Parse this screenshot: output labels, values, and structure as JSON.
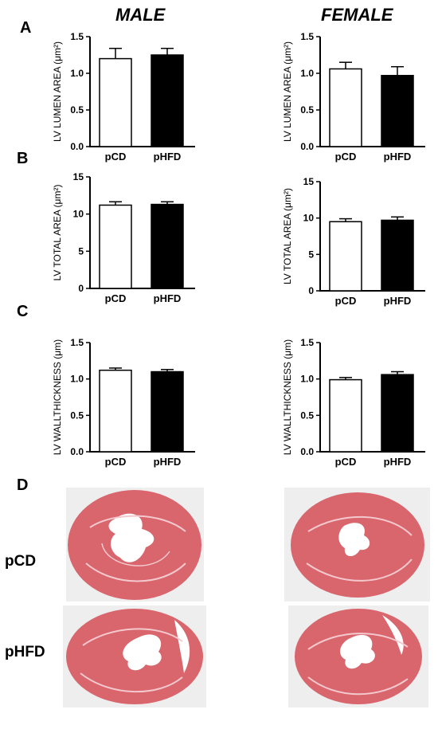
{
  "titles": {
    "male": "MALE",
    "female": "FEMALE"
  },
  "panel_letters": {
    "a": "A",
    "b": "B",
    "c": "C",
    "d": "D"
  },
  "histology": {
    "row_labels": [
      "pCD",
      "pHFD"
    ]
  },
  "colors": {
    "pCD": "#ffffff",
    "pHFD": "#000000",
    "tissue": "#d9656d",
    "tissue_light": "#f3c9ce",
    "slide_bg": "#eeeeee"
  },
  "chart_data": [
    {
      "id": "lumen-male",
      "type": "bar",
      "ylabel": "LV LUMEN AREA (μm²)",
      "categories": [
        "pCD",
        "pHFD"
      ],
      "values": [
        1.2,
        1.25
      ],
      "errors": [
        0.14,
        0.09
      ],
      "ylim": [
        0,
        1.5
      ],
      "yticks": [
        "0.0",
        "0.5",
        "1.0",
        "1.5"
      ]
    },
    {
      "id": "lumen-female",
      "type": "bar",
      "ylabel": "LV LUMEN AREA (μm²)",
      "categories": [
        "pCD",
        "pHFD"
      ],
      "values": [
        1.06,
        0.97
      ],
      "errors": [
        0.09,
        0.12
      ],
      "ylim": [
        0,
        1.5
      ],
      "yticks": [
        "0.0",
        "0.5",
        "1.0",
        "1.5"
      ]
    },
    {
      "id": "total-male",
      "type": "bar",
      "ylabel": "LV TOTAL AREA (μm²)",
      "categories": [
        "pCD",
        "pHFD"
      ],
      "values": [
        11.2,
        11.3
      ],
      "errors": [
        0.45,
        0.35
      ],
      "ylim": [
        0,
        15
      ],
      "yticks": [
        "0",
        "5",
        "10",
        "15"
      ]
    },
    {
      "id": "total-female",
      "type": "bar",
      "ylabel": "LV TOTAL AREA (μm²)",
      "categories": [
        "pCD",
        "pHFD"
      ],
      "values": [
        9.5,
        9.7
      ],
      "errors": [
        0.4,
        0.45
      ],
      "ylim": [
        0,
        15
      ],
      "yticks": [
        "0",
        "5",
        "10",
        "15"
      ]
    },
    {
      "id": "wall-male",
      "type": "bar",
      "ylabel": "LV WALLTHICKNESS (μm)",
      "categories": [
        "pCD",
        "pHFD"
      ],
      "values": [
        1.12,
        1.1
      ],
      "errors": [
        0.03,
        0.03
      ],
      "ylim": [
        0,
        1.5
      ],
      "yticks": [
        "0.0",
        "0.5",
        "1.0",
        "1.5"
      ]
    },
    {
      "id": "wall-female",
      "type": "bar",
      "ylabel": "LV WALLTHICKNESS (μm)",
      "categories": [
        "pCD",
        "pHFD"
      ],
      "values": [
        0.99,
        1.06
      ],
      "errors": [
        0.03,
        0.04
      ],
      "ylim": [
        0,
        1.5
      ],
      "yticks": [
        "0.0",
        "0.5",
        "1.0",
        "1.5"
      ]
    }
  ]
}
